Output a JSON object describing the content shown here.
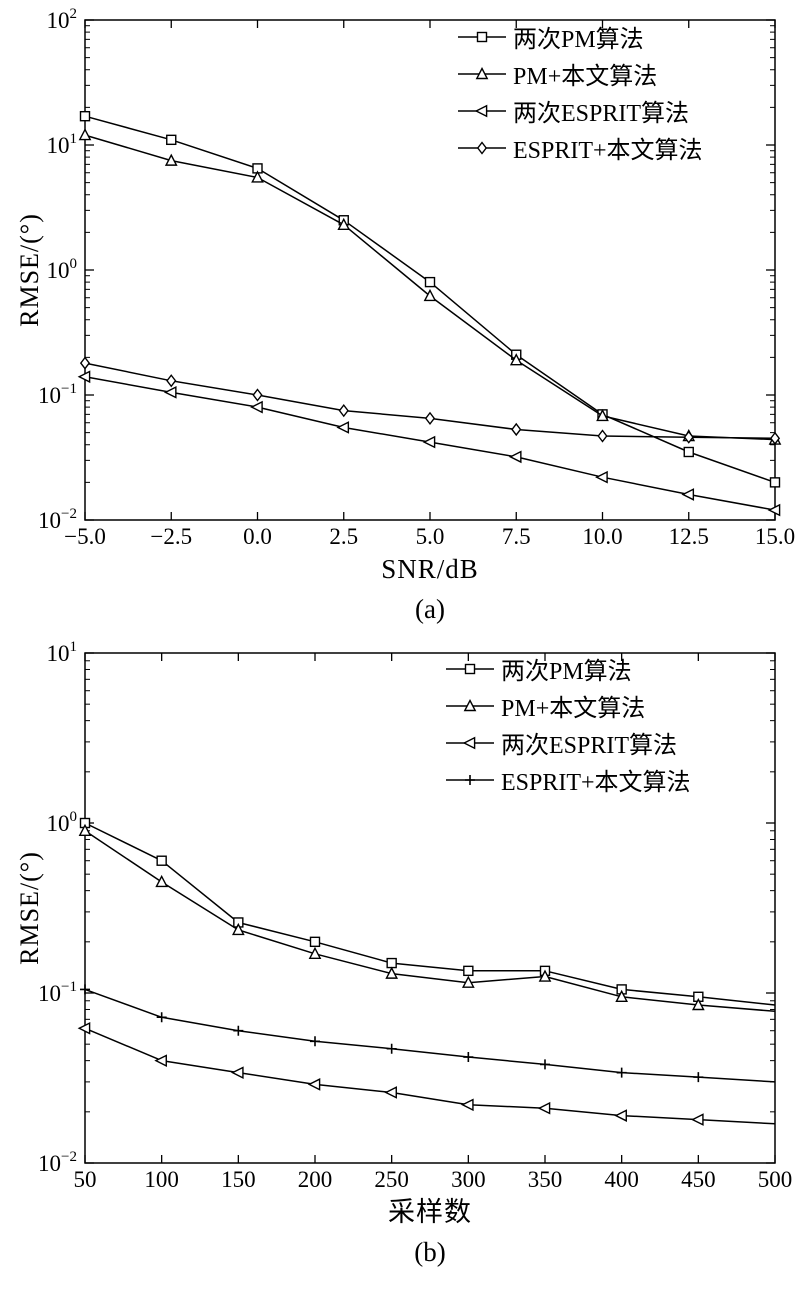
{
  "colors": {
    "line": "#000000",
    "background": "#ffffff"
  },
  "chart_data": [
    {
      "type": "line",
      "caption": "(a)",
      "title": "",
      "xlabel": "SNR/dB",
      "ylabel": "RMSE/(°)",
      "xlim": [
        -5,
        15
      ],
      "x": [
        -5,
        -2.5,
        0,
        2.5,
        5,
        7.5,
        10,
        12.5,
        15
      ],
      "xtick_labels": [
        "−5.0",
        "−2.5",
        "0.0",
        "2.5",
        "5.0",
        "7.5",
        "10.0",
        "12.5",
        "15.0"
      ],
      "ylog": true,
      "ylim": [
        0.01,
        100
      ],
      "grid": false,
      "legend_position": "upper right",
      "series": [
        {
          "name": "两次PM算法",
          "marker": "square",
          "values": [
            17,
            11,
            6.5,
            2.5,
            0.8,
            0.21,
            0.07,
            0.035,
            0.02
          ]
        },
        {
          "name": "PM+本文算法",
          "marker": "triangle-up",
          "values": [
            12,
            7.5,
            5.5,
            2.3,
            0.62,
            0.19,
            0.068,
            0.047,
            0.044
          ]
        },
        {
          "name": "两次ESPRIT算法",
          "marker": "triangle-left",
          "values": [
            0.14,
            0.105,
            0.08,
            0.055,
            0.042,
            0.032,
            0.022,
            0.016,
            0.012
          ]
        },
        {
          "name": "ESPRIT+本文算法",
          "marker": "diamond",
          "values": [
            0.18,
            0.13,
            0.1,
            0.075,
            0.065,
            0.053,
            0.047,
            0.046,
            0.045
          ]
        }
      ]
    },
    {
      "type": "line",
      "caption": "(b)",
      "title": "",
      "xlabel": "采样数",
      "ylabel": "RMSE/(°)",
      "xlim": [
        50,
        500
      ],
      "x": [
        50,
        100,
        150,
        200,
        250,
        300,
        350,
        400,
        450,
        500
      ],
      "xtick_labels": [
        "50",
        "100",
        "150",
        "200",
        "250",
        "300",
        "350",
        "400",
        "450",
        "500"
      ],
      "ylog": true,
      "ylim": [
        0.01,
        10
      ],
      "grid": false,
      "legend_position": "upper right",
      "marker_max_x": 450,
      "series": [
        {
          "name": "两次PM算法",
          "marker": "square",
          "values": [
            1.0,
            0.6,
            0.26,
            0.2,
            0.15,
            0.135,
            0.135,
            0.105,
            0.095,
            0.085
          ]
        },
        {
          "name": "PM+本文算法",
          "marker": "triangle-up",
          "values": [
            0.9,
            0.45,
            0.235,
            0.17,
            0.13,
            0.115,
            0.125,
            0.095,
            0.085,
            0.078
          ]
        },
        {
          "name": "两次ESPRIT算法",
          "marker": "triangle-left",
          "values": [
            0.062,
            0.04,
            0.034,
            0.029,
            0.026,
            0.022,
            0.021,
            0.019,
            0.018,
            0.017
          ]
        },
        {
          "name": "ESPRIT+本文算法",
          "marker": "plus",
          "values": [
            0.105,
            0.072,
            0.06,
            0.052,
            0.047,
            0.042,
            0.038,
            0.034,
            0.032,
            0.03
          ]
        }
      ]
    }
  ]
}
